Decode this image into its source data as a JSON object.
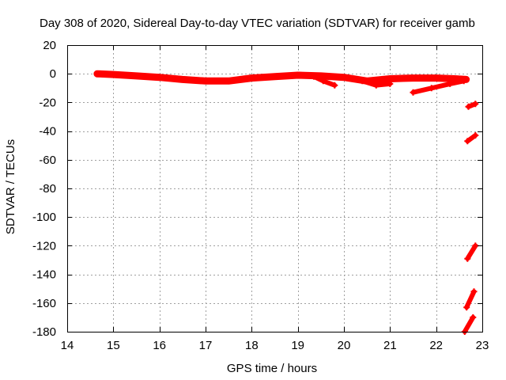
{
  "chart_data": {
    "type": "scatter",
    "title": "Day 308 of 2020, Sidereal Day-to-day VTEC variation (SDTVAR) for receiver gamb",
    "xlabel": "GPS time / hours",
    "ylabel": "SDTVAR / TECUs",
    "xlim": [
      14,
      23
    ],
    "ylim": [
      -180,
      20
    ],
    "x_ticks": [
      14,
      15,
      16,
      17,
      18,
      19,
      20,
      21,
      22,
      23
    ],
    "y_ticks": [
      20,
      0,
      -20,
      -40,
      -60,
      -80,
      -100,
      -120,
      -140,
      -160,
      -180
    ],
    "grid": true,
    "series_color": "#ff0000",
    "series": [
      {
        "name": "main-trace",
        "x": [
          14.65,
          15.0,
          15.5,
          16.0,
          16.5,
          17.0,
          17.5,
          18.0,
          18.5,
          19.0,
          19.5,
          20.0,
          20.5,
          21.0,
          21.5,
          22.0,
          22.4,
          22.65
        ],
        "y": [
          0,
          -0.5,
          -1.5,
          -2.5,
          -4,
          -5,
          -5,
          -3,
          -2,
          -1,
          -1.5,
          -2.5,
          -5,
          -3.5,
          -3,
          -3,
          -3.5,
          -4
        ]
      },
      {
        "name": "spur-1",
        "x": [
          19.35,
          19.55,
          19.8
        ],
        "y": [
          -2,
          -5,
          -8
        ]
      },
      {
        "name": "spur-2",
        "x": [
          20.4,
          20.7,
          21.0
        ],
        "y": [
          -5,
          -8,
          -7
        ]
      },
      {
        "name": "spur-3",
        "x": [
          21.5,
          21.9,
          22.3,
          22.6
        ],
        "y": [
          -13,
          -10,
          -7,
          -5
        ]
      },
      {
        "name": "seg-a",
        "x": [
          22.7,
          22.85
        ],
        "y": [
          -23,
          -21
        ]
      },
      {
        "name": "seg-b",
        "x": [
          22.68,
          22.85
        ],
        "y": [
          -47,
          -43
        ]
      },
      {
        "name": "seg-c",
        "x": [
          22.68,
          22.85
        ],
        "y": [
          -129,
          -120
        ]
      },
      {
        "name": "seg-d",
        "x": [
          22.66,
          22.82
        ],
        "y": [
          -163,
          -152
        ]
      },
      {
        "name": "seg-e",
        "x": [
          22.62,
          22.8
        ],
        "y": [
          -180,
          -170
        ]
      }
    ]
  }
}
